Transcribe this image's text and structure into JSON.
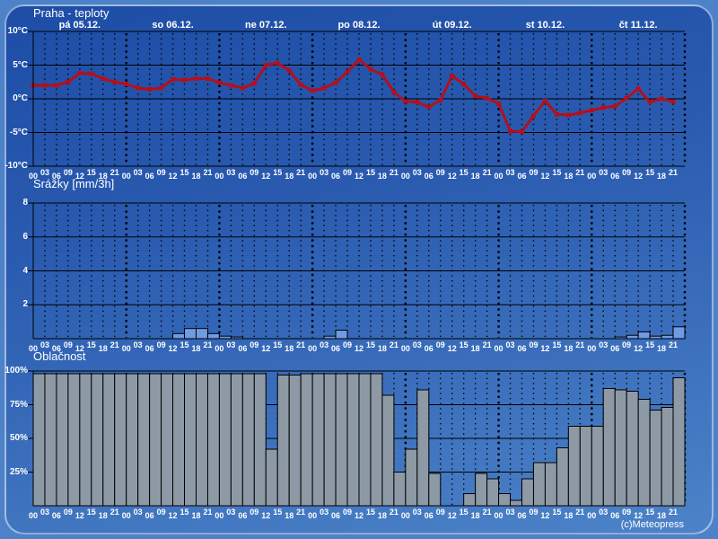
{
  "header": {
    "title": "Praha - teploty"
  },
  "footer": {
    "copyright": "(c)Meteopress"
  },
  "colors": {
    "frame": "#4d82c8",
    "background_top": "#1d4da6",
    "background_bottom": "#4c83c8",
    "grid": "#000000",
    "text": "#ffffff",
    "temperature_line": "#b3101c",
    "precip_bar": "#6f9be5",
    "cloud_bar": "#8d9aa6"
  },
  "x_axis": {
    "days": [
      "pá 05.12.",
      "so 06.12.",
      "ne 07.12.",
      "po 08.12.",
      "út 09.12.",
      "st 10.12.",
      "čt 11.12."
    ],
    "times": [
      "00",
      "03",
      "06",
      "09",
      "12",
      "15",
      "18",
      "21"
    ]
  },
  "chart_data": [
    {
      "type": "line",
      "title": "Praha - teploty",
      "ylabel": "°C",
      "ylim": [
        -10,
        10
      ],
      "yticks": [
        "10°C",
        "5°C",
        "0°C",
        "-5°C",
        "-10°C"
      ],
      "grid": "on",
      "series": [
        {
          "name": "teplota",
          "values": [
            2.0,
            2.0,
            2.0,
            2.5,
            3.8,
            3.7,
            3.0,
            2.5,
            2.2,
            1.6,
            1.4,
            1.6,
            2.9,
            2.8,
            3.0,
            3.0,
            2.4,
            2.0,
            1.6,
            2.3,
            5.0,
            5.3,
            4.2,
            2.1,
            1.2,
            1.6,
            2.4,
            4.0,
            5.8,
            4.4,
            3.6,
            1.0,
            -0.4,
            -0.5,
            -1.2,
            -0.2,
            3.4,
            2.2,
            0.4,
            0.1,
            -0.7,
            -4.8,
            -4.9,
            -2.5,
            -0.3,
            -2.3,
            -2.4,
            -2.1,
            -1.7,
            -1.3,
            -1.1,
            0.1,
            1.5,
            -0.5,
            0.0,
            -0.4
          ]
        }
      ]
    },
    {
      "type": "bar",
      "title": "Srážky [mm/3h]",
      "ylabel": "mm/3h",
      "ylim": [
        0,
        8
      ],
      "yticks": [
        "8",
        "6",
        "4",
        "2"
      ],
      "grid": "on",
      "values": [
        0,
        0,
        0,
        0,
        0,
        0,
        0,
        0,
        0,
        0,
        0,
        0,
        0.3,
        0.6,
        0.6,
        0.3,
        0.15,
        0.1,
        0,
        0,
        0,
        0,
        0,
        0,
        0,
        0.15,
        0.5,
        0,
        0,
        0,
        0,
        0,
        0,
        0,
        0,
        0,
        0,
        0,
        0,
        0,
        0,
        0,
        0,
        0,
        0,
        0,
        0,
        0,
        0,
        0,
        0.1,
        0.2,
        0.4,
        0.15,
        0.2,
        0.7
      ]
    },
    {
      "type": "bar",
      "title": "Oblačnost",
      "ylabel": "%",
      "ylim": [
        0,
        100
      ],
      "yticks": [
        "100%",
        "75%",
        "50%",
        "25%"
      ],
      "grid": "on",
      "values": [
        98,
        98,
        98,
        98,
        98,
        98,
        98,
        98,
        98,
        98,
        98,
        98,
        98,
        98,
        98,
        98,
        98,
        98,
        98,
        98,
        42,
        97,
        97,
        98,
        98,
        98,
        98,
        98,
        98,
        98,
        82,
        25,
        42,
        86,
        24,
        0,
        0,
        9,
        24,
        20,
        9,
        4,
        20,
        32,
        32,
        43,
        59,
        59,
        59,
        87,
        86,
        85,
        79,
        71,
        73,
        95
      ]
    }
  ]
}
